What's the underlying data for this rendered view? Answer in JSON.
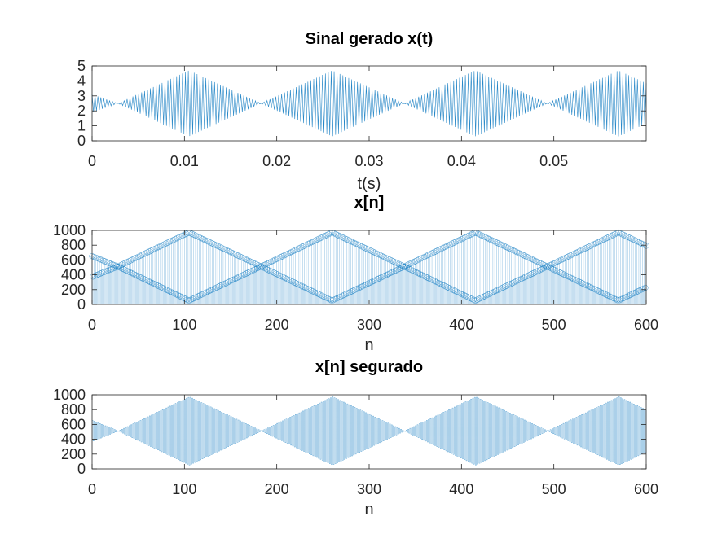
{
  "chart_data": [
    {
      "type": "line",
      "title": "Sinal gerado x(t)",
      "xlabel": "t(s)",
      "ylabel": "",
      "xlim": [
        0,
        0.06
      ],
      "ylim": [
        0,
        5
      ],
      "xticks": [
        "0",
        "0.01",
        "0.02",
        "0.03",
        "0.04",
        "0.05"
      ],
      "xtick_values": [
        0,
        0.01,
        0.02,
        0.03,
        0.04,
        0.05
      ],
      "yticks": [
        "0",
        "1",
        "2",
        "3",
        "4",
        "5"
      ],
      "ytick_values": [
        0,
        1,
        2,
        3,
        4,
        5
      ],
      "grid": false,
      "signal": {
        "description_values": "oscillating signal with triangular envelope",
        "center": 2.5,
        "amplitude_max": 2.2,
        "amplitude_at_start": 0.6,
        "zero_crossings_t": [
          0.0028,
          0.0183,
          0.0338,
          0.0493
        ],
        "peaks_t": [
          0.0105,
          0.026,
          0.0415,
          0.057
        ],
        "t_end": 0.06
      },
      "color": "#0072BD"
    },
    {
      "type": "scatter",
      "title": "x[n]",
      "xlabel": "n",
      "ylabel": "",
      "xlim": [
        0,
        600
      ],
      "ylim": [
        0,
        1000
      ],
      "xticks": [
        "0",
        "100",
        "200",
        "300",
        "400",
        "500",
        "600"
      ],
      "xtick_values": [
        0,
        100,
        200,
        300,
        400,
        500,
        600
      ],
      "yticks": [
        "0",
        "200",
        "400",
        "600",
        "800",
        "1000"
      ],
      "ytick_values": [
        0,
        200,
        400,
        600,
        800,
        1000
      ],
      "grid": false,
      "signal": {
        "center": 512,
        "amplitude_max": 460,
        "amplitude_at_start": 140,
        "zero_crossings_n": [
          28,
          183,
          338,
          493
        ],
        "peaks_n": [
          105,
          260,
          415,
          570
        ],
        "n_end": 600,
        "marker": "circle"
      },
      "color": "#0072BD"
    },
    {
      "type": "area",
      "title": "x[n] segurado",
      "xlabel": "n",
      "ylabel": "",
      "xlim": [
        0,
        600
      ],
      "ylim": [
        0,
        1000
      ],
      "xticks": [
        "0",
        "100",
        "200",
        "300",
        "400",
        "500",
        "600"
      ],
      "xtick_values": [
        0,
        100,
        200,
        300,
        400,
        500,
        600
      ],
      "yticks": [
        "0",
        "200",
        "400",
        "600",
        "800",
        "1000"
      ],
      "ytick_values": [
        0,
        200,
        400,
        600,
        800,
        1000
      ],
      "grid": false,
      "signal": {
        "center": 512,
        "amplitude_max": 460,
        "amplitude_at_start": 140,
        "zero_crossings_n": [
          28,
          183,
          338,
          493
        ],
        "peaks_n": [
          105,
          260,
          415,
          570
        ],
        "n_end": 600
      },
      "color": "#0072BD"
    }
  ]
}
